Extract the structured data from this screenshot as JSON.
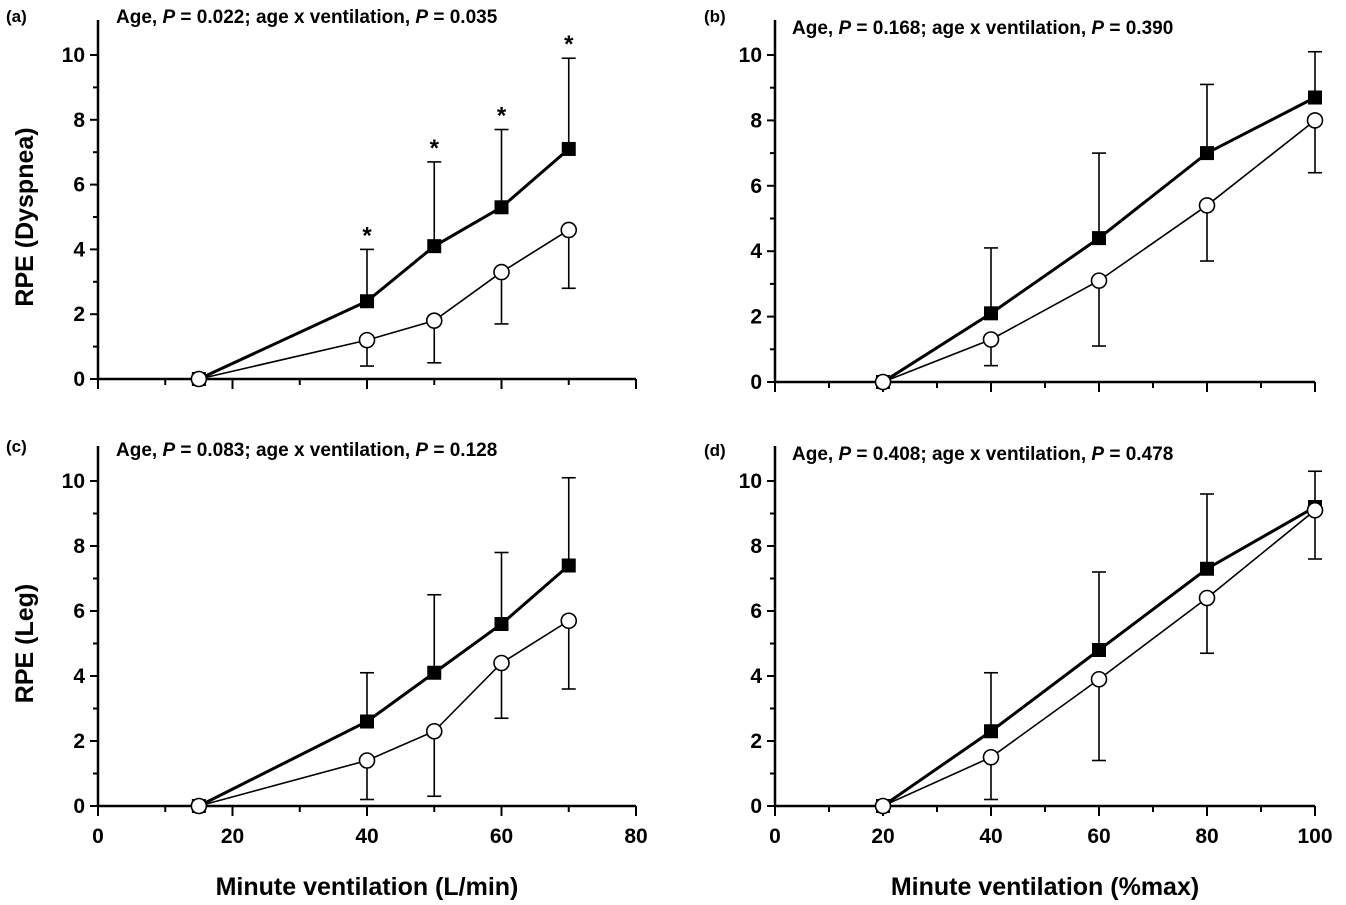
{
  "chart_data": [
    {
      "type": "line",
      "panel": "(a)",
      "stats": {
        "prefix": "Age, ",
        "p1_label": "P",
        "p1_value": " = 0.022; age x ventilation, ",
        "p2_label": "P",
        "p2_value": " = 0.035"
      },
      "ylabel": "RPE (Dyspnea)",
      "xlabel": "",
      "xlim": [
        0,
        80
      ],
      "ylim": [
        0,
        10
      ],
      "xticks": [
        "0",
        "20",
        "40",
        "60",
        "80"
      ],
      "yticks": [
        "0",
        "2",
        "4",
        "6",
        "8",
        "10"
      ],
      "show_x_tick_labels": false,
      "series": [
        {
          "marker": "square",
          "x": [
            15,
            40,
            50,
            60,
            70
          ],
          "y": [
            0,
            2.4,
            4.1,
            5.3,
            7.1
          ],
          "err_up": [
            0,
            1.6,
            2.6,
            2.4,
            2.8
          ],
          "err_down": [
            0,
            0,
            0,
            0,
            0
          ]
        },
        {
          "marker": "circle",
          "x": [
            15,
            40,
            50,
            60,
            70
          ],
          "y": [
            0,
            1.2,
            1.8,
            3.3,
            4.6
          ],
          "err_up": [
            0,
            0,
            0,
            0,
            0
          ],
          "err_down": [
            0,
            0.8,
            1.3,
            1.6,
            1.8
          ]
        }
      ],
      "significance": {
        "symbol": "*",
        "x": [
          40,
          50,
          60,
          70
        ]
      }
    },
    {
      "type": "line",
      "panel": "(b)",
      "stats": {
        "prefix": "Age, ",
        "p1_label": "P",
        "p1_value": " = 0.168; age x ventilation, ",
        "p2_label": "P",
        "p2_value": " = 0.390"
      },
      "ylabel": "",
      "xlabel": "",
      "xlim": [
        0,
        100
      ],
      "ylim": [
        0,
        10
      ],
      "xticks": [
        "0",
        "20",
        "40",
        "60",
        "80",
        "100"
      ],
      "yticks": [
        "0",
        "2",
        "4",
        "6",
        "8",
        "10"
      ],
      "show_x_tick_labels": false,
      "series": [
        {
          "marker": "square",
          "x": [
            20,
            40,
            60,
            80,
            100
          ],
          "y": [
            0,
            2.1,
            4.4,
            7.0,
            8.7
          ],
          "err_up": [
            0,
            2.0,
            2.6,
            2.1,
            1.4
          ],
          "err_down": [
            0,
            0,
            0,
            0,
            0
          ]
        },
        {
          "marker": "circle",
          "x": [
            20,
            40,
            60,
            80,
            100
          ],
          "y": [
            0,
            1.3,
            3.1,
            5.4,
            8.0
          ],
          "err_up": [
            0,
            0,
            0,
            0,
            0
          ],
          "err_down": [
            0,
            0.8,
            2.0,
            1.7,
            1.6
          ]
        }
      ],
      "significance": {
        "symbol": "*",
        "x": []
      }
    },
    {
      "type": "line",
      "panel": "(c)",
      "stats": {
        "prefix": "Age, ",
        "p1_label": "P",
        "p1_value": " = 0.083; age x ventilation, ",
        "p2_label": "P",
        "p2_value": " = 0.128"
      },
      "ylabel": "RPE (Leg)",
      "xlabel": "Minute ventilation (L/min)",
      "xlim": [
        0,
        80
      ],
      "ylim": [
        0,
        10
      ],
      "xticks": [
        "0",
        "20",
        "40",
        "60",
        "80"
      ],
      "yticks": [
        "0",
        "2",
        "4",
        "6",
        "8",
        "10"
      ],
      "show_x_tick_labels": true,
      "series": [
        {
          "marker": "square",
          "x": [
            15,
            40,
            50,
            60,
            70
          ],
          "y": [
            0,
            2.6,
            4.1,
            5.6,
            7.4
          ],
          "err_up": [
            0,
            1.5,
            2.4,
            2.2,
            2.7
          ],
          "err_down": [
            0,
            0,
            0,
            0,
            0
          ]
        },
        {
          "marker": "circle",
          "x": [
            15,
            40,
            50,
            60,
            70
          ],
          "y": [
            0,
            1.4,
            2.3,
            4.4,
            5.7
          ],
          "err_up": [
            0,
            0,
            0,
            0,
            0
          ],
          "err_down": [
            0,
            1.2,
            2.0,
            1.7,
            2.1
          ]
        }
      ],
      "significance": {
        "symbol": "*",
        "x": []
      }
    },
    {
      "type": "line",
      "panel": "(d)",
      "stats": {
        "prefix": "Age, ",
        "p1_label": "P",
        "p1_value": " = 0.408; age x ventilation, ",
        "p2_label": "P",
        "p2_value": " = 0.478"
      },
      "ylabel": "",
      "xlabel": "Minute ventilation (%max)",
      "xlim": [
        0,
        100
      ],
      "ylim": [
        0,
        10
      ],
      "xticks": [
        "0",
        "20",
        "40",
        "60",
        "80",
        "100"
      ],
      "yticks": [
        "0",
        "2",
        "4",
        "6",
        "8",
        "10"
      ],
      "show_x_tick_labels": true,
      "series": [
        {
          "marker": "square",
          "x": [
            20,
            40,
            60,
            80,
            100
          ],
          "y": [
            0,
            2.3,
            4.8,
            7.3,
            9.2
          ],
          "err_up": [
            0,
            1.8,
            2.4,
            2.3,
            1.1
          ],
          "err_down": [
            0,
            0,
            0,
            0,
            0
          ]
        },
        {
          "marker": "circle",
          "x": [
            20,
            40,
            60,
            80,
            100
          ],
          "y": [
            0,
            1.5,
            3.9,
            6.4,
            9.1
          ],
          "err_up": [
            0,
            0,
            0,
            0,
            0
          ],
          "err_down": [
            0,
            1.3,
            2.5,
            1.7,
            1.5
          ]
        }
      ],
      "significance": {
        "symbol": "*",
        "x": []
      }
    }
  ]
}
